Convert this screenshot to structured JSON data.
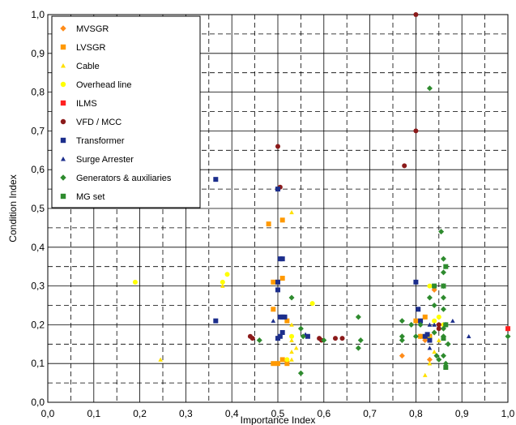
{
  "chart_data": {
    "type": "scatter",
    "xlabel": "Importance Index",
    "ylabel": "Condition Index",
    "xlim": [
      0,
      1
    ],
    "ylim": [
      0,
      1
    ],
    "x_ticks": [
      "0,0",
      "0,1",
      "0,2",
      "0,3",
      "0,4",
      "0,5",
      "0,6",
      "0,7",
      "0,8",
      "0,9",
      "1,0"
    ],
    "y_ticks": [
      "0,0",
      "0,1",
      "0,2",
      "0,3",
      "0,4",
      "0,5",
      "0,6",
      "0,7",
      "0,8",
      "0,9",
      "1,0"
    ],
    "grid": true,
    "legend_position": "top-left",
    "series": [
      {
        "name": "MVSGR",
        "color": "#FF8C1A",
        "marker": "diamond",
        "points": [
          [
            0.77,
            0.12
          ],
          [
            0.83,
            0.11
          ],
          [
            0.84,
            0.29
          ],
          [
            0.85,
            0.2
          ],
          [
            0.81,
            0.17
          ],
          [
            0.82,
            0.16
          ]
        ]
      },
      {
        "name": "LVSGR",
        "color": "#FF9900",
        "marker": "square",
        "points": [
          [
            0.48,
            0.46
          ],
          [
            0.49,
            0.1
          ],
          [
            0.49,
            0.24
          ],
          [
            0.5,
            0.31
          ],
          [
            0.5,
            0.1
          ],
          [
            0.51,
            0.11
          ],
          [
            0.51,
            0.32
          ],
          [
            0.51,
            0.47
          ],
          [
            0.52,
            0.1
          ],
          [
            0.52,
            0.21
          ],
          [
            0.8,
            0.21
          ],
          [
            0.81,
            0.17
          ],
          [
            0.82,
            0.22
          ],
          [
            0.83,
            0.17
          ],
          [
            0.49,
            0.31
          ]
        ]
      },
      {
        "name": "Cable",
        "color": "#FFE000",
        "marker": "triangle",
        "points": [
          [
            0.245,
            0.11
          ],
          [
            0.38,
            0.3
          ],
          [
            0.53,
            0.49
          ],
          [
            0.53,
            0.11
          ],
          [
            0.53,
            0.13
          ],
          [
            0.54,
            0.14
          ],
          [
            0.53,
            0.16
          ],
          [
            0.53,
            0.2
          ],
          [
            0.82,
            0.07
          ],
          [
            0.83,
            0.1
          ],
          [
            0.84,
            0.13
          ],
          [
            0.85,
            0.16
          ],
          [
            0.83,
            0.17
          ]
        ]
      },
      {
        "name": "Overhead line",
        "color": "#FFFF00",
        "marker": "circle",
        "points": [
          [
            0.19,
            0.31
          ],
          [
            0.38,
            0.31
          ],
          [
            0.39,
            0.33
          ],
          [
            0.53,
            0.17
          ],
          [
            0.575,
            0.255
          ],
          [
            0.52,
            0.11
          ],
          [
            0.83,
            0.3
          ],
          [
            0.84,
            0.21
          ],
          [
            0.85,
            0.22
          ],
          [
            0.86,
            0.2
          ]
        ]
      },
      {
        "name": "ILMS",
        "color": "#FF2020",
        "marker": "square",
        "points": [
          [
            1.0,
            0.19
          ]
        ]
      },
      {
        "name": "VFD / MCC",
        "color": "#8B1A1A",
        "marker": "circle",
        "points": [
          [
            0.44,
            0.17
          ],
          [
            0.445,
            0.165
          ],
          [
            0.5,
            0.66
          ],
          [
            0.505,
            0.555
          ],
          [
            0.5,
            0.165
          ],
          [
            0.59,
            0.165
          ],
          [
            0.595,
            0.16
          ],
          [
            0.625,
            0.165
          ],
          [
            0.64,
            0.165
          ],
          [
            0.775,
            0.61
          ],
          [
            0.8,
            1.0
          ],
          [
            0.8,
            0.7
          ],
          [
            0.85,
            0.19
          ],
          [
            0.85,
            0.2
          ]
        ]
      },
      {
        "name": "Transformer",
        "color": "#1C2E8C",
        "marker": "square",
        "points": [
          [
            0.365,
            0.575
          ],
          [
            0.365,
            0.21
          ],
          [
            0.5,
            0.55
          ],
          [
            0.505,
            0.37
          ],
          [
            0.51,
            0.37
          ],
          [
            0.5,
            0.29
          ],
          [
            0.5,
            0.31
          ],
          [
            0.505,
            0.22
          ],
          [
            0.51,
            0.22
          ],
          [
            0.515,
            0.22
          ],
          [
            0.5,
            0.165
          ],
          [
            0.505,
            0.17
          ],
          [
            0.51,
            0.18
          ],
          [
            0.565,
            0.17
          ],
          [
            0.8,
            0.31
          ],
          [
            0.805,
            0.24
          ],
          [
            0.81,
            0.21
          ],
          [
            0.82,
            0.17
          ],
          [
            0.825,
            0.175
          ],
          [
            0.83,
            0.16
          ]
        ]
      },
      {
        "name": "Surge Arrester",
        "color": "#1C2E8C",
        "marker": "triangle",
        "points": [
          [
            0.49,
            0.21
          ],
          [
            0.56,
            0.175
          ],
          [
            0.83,
            0.14
          ],
          [
            0.83,
            0.2
          ],
          [
            0.84,
            0.2
          ],
          [
            0.88,
            0.21
          ],
          [
            0.915,
            0.17
          ]
        ]
      },
      {
        "name": "Generators & auxiliaries",
        "color": "#2E8B2E",
        "marker": "diamond",
        "points": [
          [
            0.46,
            0.16
          ],
          [
            0.53,
            0.27
          ],
          [
            0.55,
            0.075
          ],
          [
            0.55,
            0.19
          ],
          [
            0.555,
            0.17
          ],
          [
            0.6,
            0.16
          ],
          [
            0.675,
            0.14
          ],
          [
            0.68,
            0.16
          ],
          [
            0.675,
            0.22
          ],
          [
            0.77,
            0.16
          ],
          [
            0.77,
            0.17
          ],
          [
            0.77,
            0.21
          ],
          [
            0.79,
            0.2
          ],
          [
            0.8,
            0.17
          ],
          [
            0.81,
            0.2
          ],
          [
            0.83,
            0.27
          ],
          [
            0.83,
            0.81
          ],
          [
            0.84,
            0.18
          ],
          [
            0.84,
            0.25
          ],
          [
            0.845,
            0.12
          ],
          [
            0.85,
            0.11
          ],
          [
            0.855,
            0.44
          ],
          [
            0.86,
            0.37
          ],
          [
            0.86,
            0.335
          ],
          [
            0.86,
            0.3
          ],
          [
            0.86,
            0.27
          ],
          [
            0.86,
            0.24
          ],
          [
            0.86,
            0.19
          ],
          [
            0.86,
            0.17
          ],
          [
            0.86,
            0.12
          ],
          [
            0.865,
            0.1
          ],
          [
            0.87,
            0.15
          ],
          [
            0.865,
            0.2
          ],
          [
            1.0,
            0.17
          ]
        ]
      },
      {
        "name": "MG set",
        "color": "#2E8B2E",
        "marker": "square",
        "points": [
          [
            0.84,
            0.3
          ],
          [
            0.86,
            0.3
          ],
          [
            0.865,
            0.35
          ],
          [
            0.865,
            0.2
          ],
          [
            0.865,
            0.09
          ],
          [
            0.86,
            0.165
          ]
        ]
      }
    ]
  }
}
